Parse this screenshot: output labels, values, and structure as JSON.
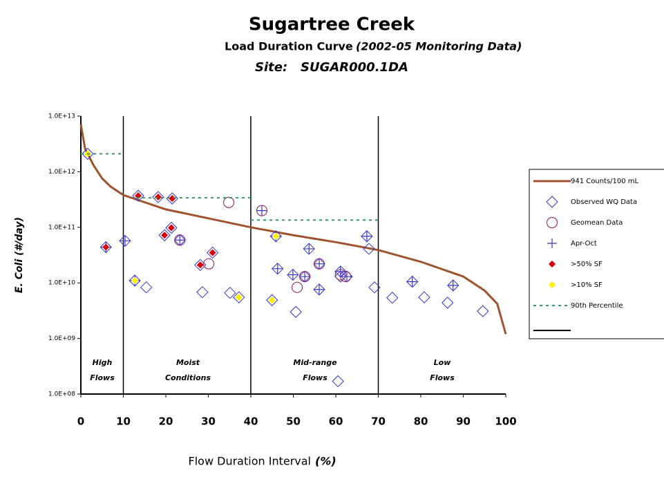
{
  "chart_data": {
    "type": "scatter",
    "title": "Sugartree Creek",
    "subtitle": "Load Duration Curve",
    "subtitle_note": "(2002-05 Monitoring Data)",
    "site": "Site:   SUGAR000.1DA",
    "x_label": "Flow Duration Interval",
    "x_label_unit": "(%)",
    "y_label": "E. Coli (#/day)",
    "log_y": true,
    "xlim": [
      0,
      100
    ],
    "ylim": [
      100000000,
      10000000000000
    ],
    "xticks": [
      0,
      10,
      20,
      30,
      40,
      50,
      60,
      70,
      80,
      90,
      100
    ],
    "yticks": [
      {
        "value": 100000000,
        "label": "1.0E+08"
      },
      {
        "value": 1000000000,
        "label": "1.0E+09"
      },
      {
        "value": 10000000000,
        "label": "1.0E+10"
      },
      {
        "value": 100000000000,
        "label": "1.0E+11"
      },
      {
        "value": 1000000000000,
        "label": "1.0E+12"
      },
      {
        "value": 10000000000000,
        "label": "1.0E+13"
      }
    ],
    "zone_boundaries": [
      10,
      40,
      70
    ],
    "zones": [
      [
        "High",
        "Flows"
      ],
      [
        "Moist",
        "Conditions"
      ],
      [
        "Mid-range",
        "Flows"
      ],
      [
        "Low",
        "Flows"
      ]
    ],
    "series": [
      {
        "name": "941 Counts/100 mL",
        "marker": "line",
        "color": "#a0522d",
        "x": [
          0,
          1,
          3,
          5,
          7,
          10,
          20,
          30,
          40,
          50,
          60,
          70,
          80,
          90,
          95,
          98,
          100
        ],
        "values": [
          7100000000000,
          2600000000000,
          1300000000000,
          760000000000,
          540000000000,
          380000000000,
          210000000000,
          145000000000,
          100000000000,
          72000000000,
          54000000000,
          39000000000,
          24000000000,
          13000000000,
          7300000000,
          4200000000,
          1200000000
        ]
      },
      {
        "name": "Observed WQ Data",
        "marker": "diamond",
        "color": "#3333cc",
        "x": [
          1.6,
          5.9,
          10.4,
          13.5,
          12.7,
          15.4,
          18.2,
          21.5,
          19.7,
          21.3,
          23.3,
          28.1,
          31,
          28.6,
          35.1,
          37.2,
          45,
          45.9,
          46.3,
          49.9,
          50.6,
          52.7,
          53.7,
          56.1,
          56.1,
          60.5,
          61.1,
          61.1,
          62.6,
          67.3,
          67.8,
          69.1,
          73.3,
          78,
          80.8,
          86.3,
          87.6,
          94.6
        ],
        "values": [
          2100000000000,
          44000000000,
          57000000000,
          370000000000,
          11000000000,
          8300000000,
          350000000000,
          330000000000,
          72000000000,
          98000000000,
          59000000000,
          21000000000,
          35000000000,
          6800000000,
          6600000000,
          5500000000,
          4900000000,
          69000000000,
          18000000000,
          14000000000,
          3000000000,
          13000000000,
          41000000000,
          22000000000,
          7600000000,
          170000000,
          16000000000,
          13000000000,
          13000000000,
          69000000000,
          41000000000,
          8300000000,
          5400000000,
          10500000000,
          5500000000,
          4400000000,
          9000000000,
          3100000000
        ]
      },
      {
        "name": "Geomean Data",
        "marker": "circle",
        "color": "#993366",
        "x": [
          34.8,
          42.6,
          23.3,
          30.1,
          50.9,
          52.7,
          56.1,
          61.1,
          62.3
        ],
        "values": [
          280000000000,
          200000000000,
          59000000000,
          22000000000,
          8300000000,
          13000000000,
          22000000000,
          14000000000,
          13000000000
        ]
      },
      {
        "name": "Apr-Oct",
        "marker": "plus",
        "color": "#3333cc",
        "x": [
          5.9,
          10.4,
          12.7,
          23.3,
          42.6,
          45.9,
          46.3,
          49.9,
          52.7,
          53.7,
          56.1,
          56.1,
          61.1,
          62.6,
          67.3,
          78,
          87.6
        ],
        "values": [
          44000000000,
          57000000000,
          11000000000,
          59000000000,
          200000000000,
          69000000000,
          18000000000,
          14000000000,
          13000000000,
          41000000000,
          22000000000,
          7600000000,
          16000000000,
          13000000000,
          69000000000,
          10500000000,
          9000000000
        ]
      },
      {
        "name": ">50% SF",
        "marker": "fill-diamond",
        "color": "#dd0000",
        "x": [
          5.9,
          13.5,
          18.2,
          21.5,
          19.7,
          21.3,
          28.1,
          31
        ],
        "values": [
          44000000000,
          370000000000,
          350000000000,
          330000000000,
          72000000000,
          98000000000,
          21000000000,
          35000000000
        ]
      },
      {
        "name": ">10% SF",
        "marker": "fill-diamond",
        "color": "#ffee00",
        "x": [
          1.6,
          12.7,
          45.9,
          45,
          37.2
        ],
        "values": [
          2100000000000,
          11000000000,
          69000000000,
          4900000000,
          5500000000
        ]
      },
      {
        "name": "90th Percentile",
        "marker": "dash",
        "color": "#339966",
        "x": [
          0,
          10,
          10,
          13,
          40,
          40,
          40,
          70
        ],
        "values": [
          2100000000000,
          2100000000000,
          null,
          340000000000,
          340000000000,
          null,
          135000000000,
          135000000000
        ]
      }
    ]
  }
}
